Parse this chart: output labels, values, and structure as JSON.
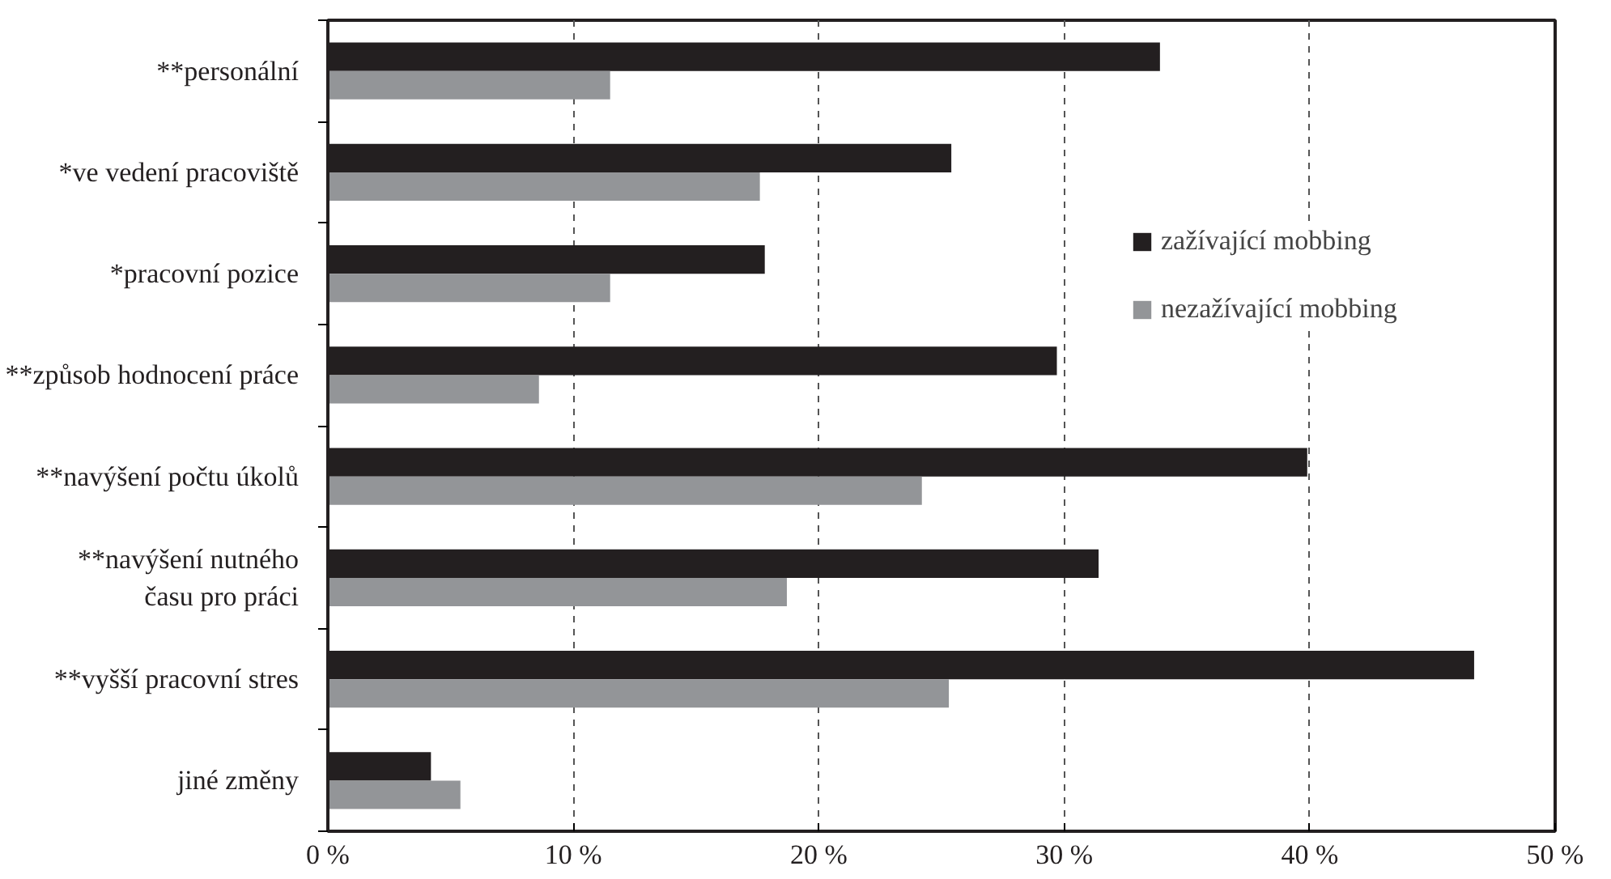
{
  "chart_data": {
    "type": "bar",
    "orientation": "horizontal",
    "categories": [
      "**personální",
      "*ve vedení pracoviště",
      "*pracovní pozice",
      "**způsob hodnocení práce",
      "**navýšení počtu úkolů",
      "**navýšení nutného\nčasu pro práci",
      "**vyšší pracovní stres",
      "jiné změny"
    ],
    "series": [
      {
        "name": "zažívající mobbing",
        "color": "#231f20",
        "values": [
          33.9,
          25.4,
          17.8,
          29.7,
          39.9,
          31.4,
          46.7,
          4.2
        ]
      },
      {
        "name": "nezažívající mobbing",
        "color": "#939598",
        "values": [
          11.5,
          17.6,
          11.5,
          8.6,
          24.2,
          18.7,
          25.3,
          5.4
        ]
      }
    ],
    "xlim": [
      0,
      50
    ],
    "xticks": [
      {
        "value": 0,
        "label": "0 %"
      },
      {
        "value": 10,
        "label": "10 %"
      },
      {
        "value": 20,
        "label": "20 %"
      },
      {
        "value": 30,
        "label": "30 %"
      },
      {
        "value": 40,
        "label": "40 %"
      },
      {
        "value": 50,
        "label": "50 %"
      }
    ],
    "grid": "x",
    "legend": "right"
  }
}
